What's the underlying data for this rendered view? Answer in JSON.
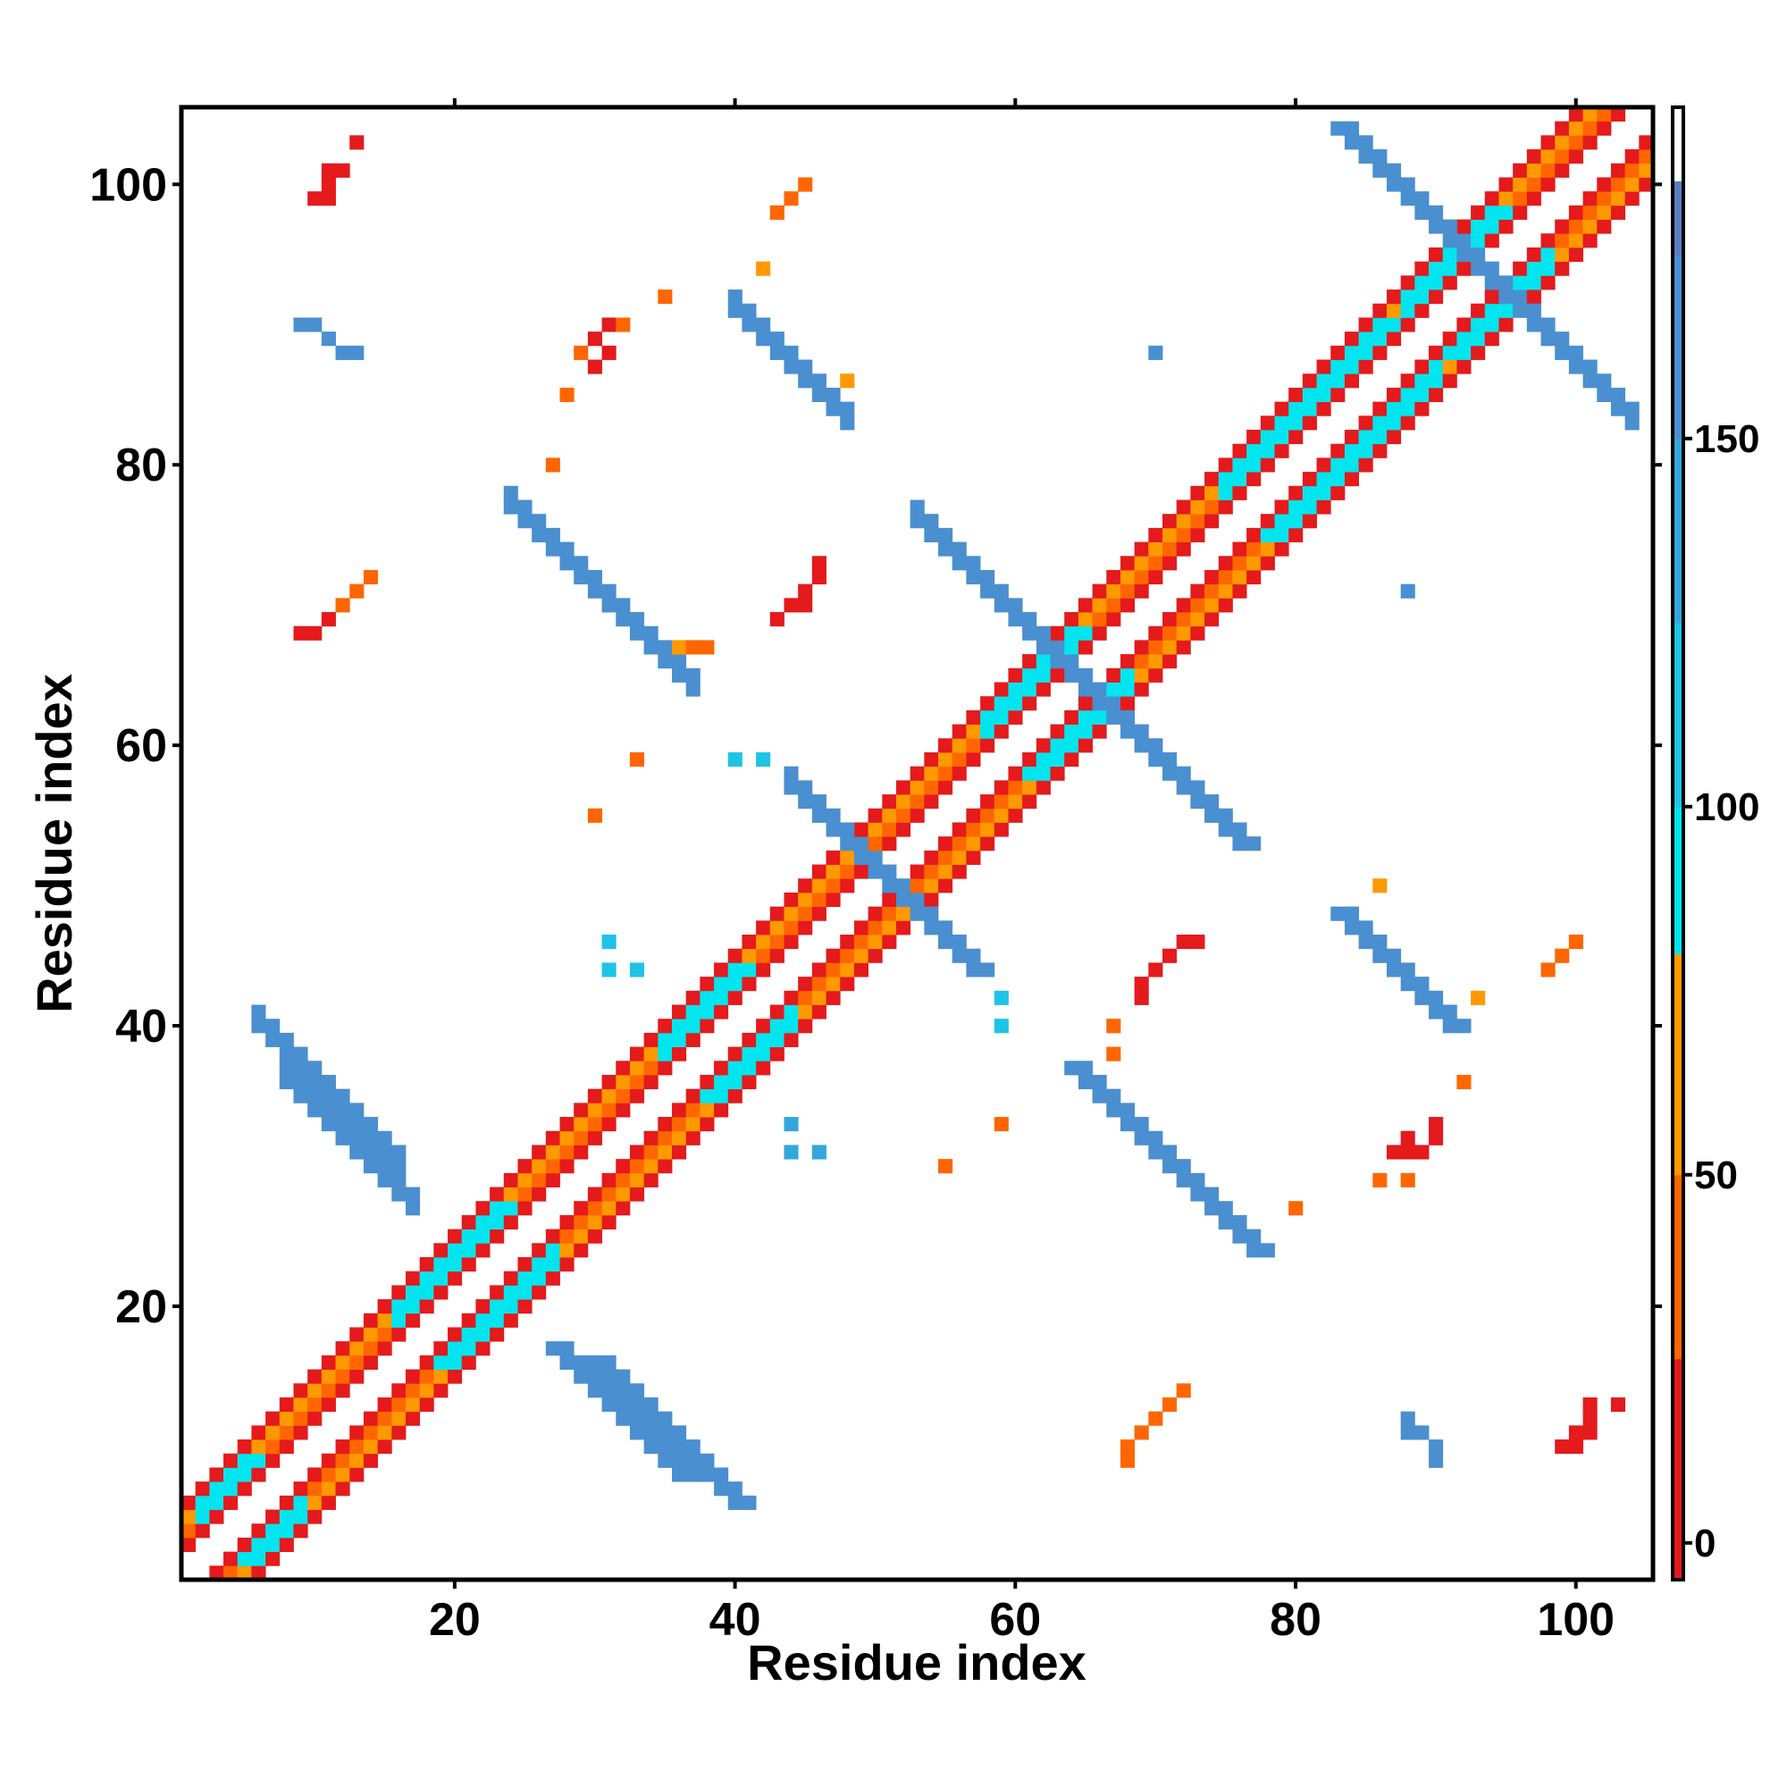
{
  "chart_data": {
    "type": "heatmap",
    "title": "",
    "xlabel": "Residue index",
    "ylabel": "Residue index",
    "xlim": [
      1,
      105
    ],
    "ylim": [
      1,
      105
    ],
    "xticks": [
      20,
      40,
      60,
      80,
      100
    ],
    "yticks": [
      20,
      40,
      60,
      80,
      100
    ],
    "colorbar": {
      "range": [
        -5,
        195
      ],
      "ticks": [
        0,
        50,
        100,
        150
      ],
      "bins": [
        {
          "from": -5,
          "to": 25,
          "color": "#e41a1c"
        },
        {
          "from": 25,
          "to": 50,
          "color": "#ff6600"
        },
        {
          "from": 50,
          "to": 80,
          "color": "#ff9900"
        },
        {
          "from": 80,
          "to": 100,
          "color": "#00e5ee"
        },
        {
          "from": 100,
          "to": 125,
          "color": "#1fc3e6"
        },
        {
          "from": 125,
          "to": 150,
          "color": "#33a7dd"
        },
        {
          "from": 150,
          "to": 175,
          "color": "#4a8fd0"
        },
        {
          "from": 175,
          "to": 185,
          "color": "#5b7fc2"
        },
        {
          "from": 185,
          "to": 195,
          "color": "#ffffff"
        }
      ]
    },
    "diagonal_band": {
      "offsets": [
        2,
        3,
        4,
        5
      ],
      "value_by_offset": {
        "2": 10,
        "3": 40,
        "4": 60,
        "5": 10
      }
    },
    "helix_segments": [
      [
        2,
        7
      ],
      [
        16,
        25
      ],
      [
        35,
        42
      ],
      [
        58,
        66
      ],
      [
        75,
        88
      ],
      [
        88,
        96
      ]
    ],
    "helix_band": {
      "offsets": [
        3,
        4
      ],
      "value": 90
    },
    "antiparallel_strands": [
      {
        "i_range": [
          6,
          16
        ],
        "sum": 46,
        "width": 2,
        "value": 150
      },
      {
        "i_range": [
          8,
          17
        ],
        "sum": 44,
        "width": 2,
        "value": 150
      },
      {
        "i_range": [
          24,
          37
        ],
        "sum": 101,
        "width": 2,
        "value": 160
      },
      {
        "i_range": [
          40,
          48
        ],
        "sum": 131,
        "width": 2,
        "value": 155
      },
      {
        "i_range": [
          44,
          53
        ],
        "sum": 101,
        "width": 2,
        "value": 150
      },
      {
        "i_range": [
          53,
          66
        ],
        "sum": 129,
        "width": 2,
        "value": 155
      },
      {
        "i_range": [
          84,
          104
        ],
        "sum": 187,
        "width": 2,
        "value": 150
      }
    ],
    "isolated_contacts": [
      {
        "x": 13,
        "y": 103,
        "v": 10
      },
      {
        "x": 11,
        "y": 101,
        "v": 10
      },
      {
        "x": 12,
        "y": 101,
        "v": 10
      },
      {
        "x": 10,
        "y": 99,
        "v": 10
      },
      {
        "x": 11,
        "y": 99,
        "v": 10
      },
      {
        "x": 11,
        "y": 100,
        "v": 20
      },
      {
        "x": 43,
        "y": 98,
        "v": 40
      },
      {
        "x": 44,
        "y": 99,
        "v": 40
      },
      {
        "x": 45,
        "y": 100,
        "v": 40
      },
      {
        "x": 30,
        "y": 89,
        "v": 20
      },
      {
        "x": 31,
        "y": 90,
        "v": 20
      },
      {
        "x": 32,
        "y": 90,
        "v": 40
      },
      {
        "x": 31,
        "y": 88,
        "v": 20
      },
      {
        "x": 30,
        "y": 87,
        "v": 20
      },
      {
        "x": 29,
        "y": 88,
        "v": 40
      },
      {
        "x": 28,
        "y": 85,
        "v": 40
      },
      {
        "x": 35,
        "y": 92,
        "v": 40
      },
      {
        "x": 9,
        "y": 90,
        "v": 160
      },
      {
        "x": 10,
        "y": 90,
        "v": 160
      },
      {
        "x": 11,
        "y": 89,
        "v": 160
      },
      {
        "x": 12,
        "y": 88,
        "v": 160
      },
      {
        "x": 13,
        "y": 88,
        "v": 160
      },
      {
        "x": 70,
        "y": 88,
        "v": 160
      },
      {
        "x": 27,
        "y": 80,
        "v": 40
      },
      {
        "x": 9,
        "y": 68,
        "v": 10
      },
      {
        "x": 10,
        "y": 68,
        "v": 10
      },
      {
        "x": 11,
        "y": 69,
        "v": 20
      },
      {
        "x": 12,
        "y": 70,
        "v": 40
      },
      {
        "x": 13,
        "y": 71,
        "v": 40
      },
      {
        "x": 14,
        "y": 72,
        "v": 40
      },
      {
        "x": 43,
        "y": 69,
        "v": 10
      },
      {
        "x": 44,
        "y": 70,
        "v": 10
      },
      {
        "x": 45,
        "y": 71,
        "v": 10
      },
      {
        "x": 46,
        "y": 72,
        "v": 10
      },
      {
        "x": 46,
        "y": 73,
        "v": 10
      },
      {
        "x": 45,
        "y": 70,
        "v": 10
      },
      {
        "x": 36,
        "y": 67,
        "v": 60
      },
      {
        "x": 37,
        "y": 67,
        "v": 40
      },
      {
        "x": 38,
        "y": 67,
        "v": 40
      },
      {
        "x": 48,
        "y": 86,
        "v": 60
      },
      {
        "x": 42,
        "y": 94,
        "v": 60
      },
      {
        "x": 88,
        "y": 71,
        "v": 160
      },
      {
        "x": 33,
        "y": 59,
        "v": 40
      },
      {
        "x": 40,
        "y": 59,
        "v": 120
      },
      {
        "x": 42,
        "y": 59,
        "v": 120
      },
      {
        "x": 30,
        "y": 55,
        "v": 40
      },
      {
        "x": 31,
        "y": 46,
        "v": 120
      },
      {
        "x": 31,
        "y": 44,
        "v": 120
      },
      {
        "x": 33,
        "y": 44,
        "v": 120
      },
      {
        "x": 59,
        "y": 42,
        "v": 120
      },
      {
        "x": 59,
        "y": 40,
        "v": 120
      },
      {
        "x": 70,
        "y": 44,
        "v": 10
      },
      {
        "x": 71,
        "y": 45,
        "v": 10
      },
      {
        "x": 72,
        "y": 46,
        "v": 10
      },
      {
        "x": 73,
        "y": 46,
        "v": 20
      },
      {
        "x": 69,
        "y": 42,
        "v": 10
      },
      {
        "x": 69,
        "y": 43,
        "v": 10
      },
      {
        "x": 67,
        "y": 38,
        "v": 40
      },
      {
        "x": 67,
        "y": 40,
        "v": 40
      },
      {
        "x": 44,
        "y": 33,
        "v": 140
      },
      {
        "x": 44,
        "y": 31,
        "v": 140
      },
      {
        "x": 46,
        "y": 31,
        "v": 140
      },
      {
        "x": 59,
        "y": 33,
        "v": 40
      },
      {
        "x": 55,
        "y": 30,
        "v": 40
      },
      {
        "x": 80,
        "y": 27,
        "v": 40
      },
      {
        "x": 86,
        "y": 50,
        "v": 60
      },
      {
        "x": 93,
        "y": 42,
        "v": 60
      },
      {
        "x": 92,
        "y": 36,
        "v": 40
      },
      {
        "x": 98,
        "y": 44,
        "v": 40
      },
      {
        "x": 99,
        "y": 45,
        "v": 40
      },
      {
        "x": 100,
        "y": 46,
        "v": 40
      },
      {
        "x": 88,
        "y": 32,
        "v": 10
      },
      {
        "x": 89,
        "y": 31,
        "v": 10
      },
      {
        "x": 90,
        "y": 32,
        "v": 10
      },
      {
        "x": 90,
        "y": 33,
        "v": 10
      },
      {
        "x": 88,
        "y": 31,
        "v": 10
      },
      {
        "x": 87,
        "y": 31,
        "v": 10
      },
      {
        "x": 86,
        "y": 29,
        "v": 40
      },
      {
        "x": 88,
        "y": 29,
        "v": 40
      },
      {
        "x": 68,
        "y": 9,
        "v": 40
      },
      {
        "x": 68,
        "y": 10,
        "v": 40
      },
      {
        "x": 69,
        "y": 11,
        "v": 40
      },
      {
        "x": 70,
        "y": 12,
        "v": 40
      },
      {
        "x": 71,
        "y": 13,
        "v": 40
      },
      {
        "x": 72,
        "y": 14,
        "v": 40
      },
      {
        "x": 88,
        "y": 11,
        "v": 160
      },
      {
        "x": 88,
        "y": 12,
        "v": 160
      },
      {
        "x": 89,
        "y": 11,
        "v": 160
      },
      {
        "x": 90,
        "y": 10,
        "v": 160
      },
      {
        "x": 90,
        "y": 9,
        "v": 160
      },
      {
        "x": 99,
        "y": 10,
        "v": 10
      },
      {
        "x": 100,
        "y": 11,
        "v": 10
      },
      {
        "x": 101,
        "y": 11,
        "v": 10
      },
      {
        "x": 101,
        "y": 12,
        "v": 10
      },
      {
        "x": 101,
        "y": 13,
        "v": 10
      },
      {
        "x": 103,
        "y": 13,
        "v": 10
      },
      {
        "x": 100,
        "y": 10,
        "v": 10
      }
    ]
  }
}
